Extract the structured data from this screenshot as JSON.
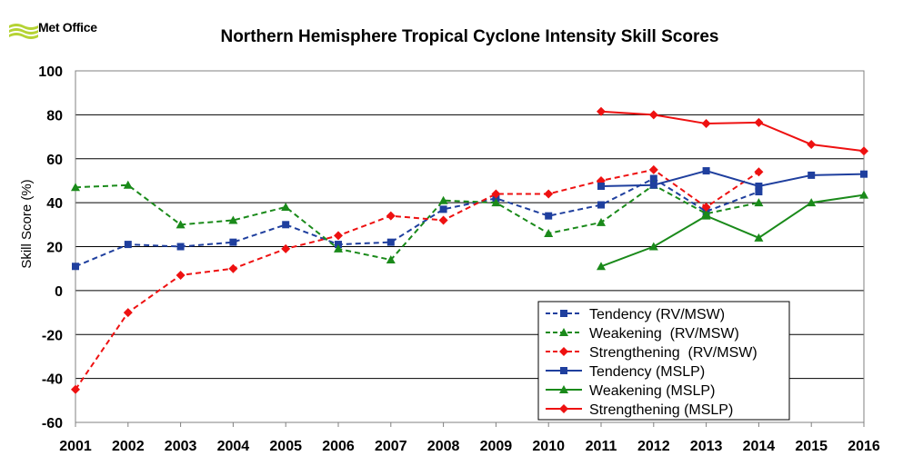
{
  "logo": {
    "text": "Met Office"
  },
  "chart_data": {
    "type": "line",
    "title": "Northern Hemisphere Tropical Cyclone Intensity Skill Scores",
    "xlabel": "",
    "ylabel": "Skill Score (%)",
    "x": [
      2001,
      2002,
      2003,
      2004,
      2005,
      2006,
      2007,
      2008,
      2009,
      2010,
      2011,
      2012,
      2013,
      2014,
      2015,
      2016
    ],
    "xlim": [
      2001,
      2016
    ],
    "ylim": [
      -60,
      100
    ],
    "yticks": [
      -60,
      -40,
      -20,
      0,
      20,
      40,
      60,
      80,
      100
    ],
    "grid": "horizontal",
    "legend_position": "lower-right",
    "series": [
      {
        "name": "Tendency (RV/MSW)",
        "color": "#1f3f9e",
        "dashed": true,
        "marker": "square",
        "x": [
          2001,
          2002,
          2003,
          2004,
          2005,
          2006,
          2007,
          2008,
          2009,
          2010,
          2011,
          2012,
          2013,
          2014
        ],
        "values": [
          11,
          21,
          20,
          22,
          30,
          21,
          22,
          37,
          42,
          34,
          39,
          51,
          36,
          45
        ]
      },
      {
        "name": "Weakening  (RV/MSW)",
        "color": "#1a8a1a",
        "dashed": true,
        "marker": "triangle",
        "x": [
          2001,
          2002,
          2003,
          2004,
          2005,
          2006,
          2007,
          2008,
          2009,
          2010,
          2011,
          2012,
          2013,
          2014
        ],
        "values": [
          47,
          48,
          30,
          32,
          38,
          19,
          14,
          41,
          40,
          26,
          31,
          48,
          35,
          40
        ]
      },
      {
        "name": "Strengthening  (RV/MSW)",
        "color": "#ee1111",
        "dashed": true,
        "marker": "diamond",
        "x": [
          2001,
          2002,
          2003,
          2004,
          2005,
          2006,
          2007,
          2008,
          2009,
          2010,
          2011,
          2012,
          2013,
          2014
        ],
        "values": [
          -45,
          -10,
          7,
          10,
          19,
          25,
          34,
          32,
          44,
          44,
          50,
          55,
          38,
          54
        ]
      },
      {
        "name": "Tendency (MSLP)",
        "color": "#1f3f9e",
        "dashed": false,
        "marker": "square",
        "x": [
          2011,
          2012,
          2013,
          2014,
          2015,
          2016
        ],
        "values": [
          47.5,
          48,
          54.5,
          47.5,
          52.5,
          53
        ]
      },
      {
        "name": "Weakening (MSLP)",
        "color": "#1a8a1a",
        "dashed": false,
        "marker": "triangle",
        "x": [
          2011,
          2012,
          2013,
          2014,
          2015,
          2016
        ],
        "values": [
          11,
          20,
          34,
          24,
          40,
          43.5
        ]
      },
      {
        "name": "Strengthening (MSLP)",
        "color": "#ee1111",
        "dashed": false,
        "marker": "diamond",
        "x": [
          2011,
          2012,
          2013,
          2014,
          2015,
          2016
        ],
        "values": [
          81.5,
          80,
          76,
          76.5,
          66.5,
          63.5
        ]
      }
    ]
  }
}
